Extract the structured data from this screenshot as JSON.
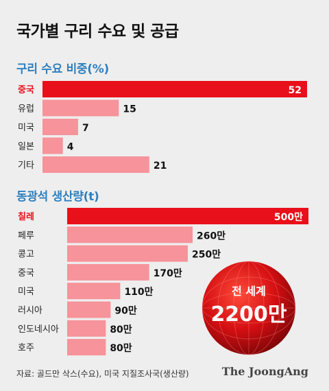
{
  "title": "국가별 구리 수요 및 공급",
  "source": "자료: 골드만 삭스(수요), 미국 지질조사국(생산량)",
  "logo": "The JoongAng",
  "colors": {
    "highlight": "#e8101a",
    "bar": "#f7939a",
    "section_title": "#2c7fbf",
    "background": "#eeeeee"
  },
  "chart_data": [
    {
      "type": "bar",
      "orientation": "horizontal",
      "title": "구리 수요 비중(%)",
      "categories": [
        "중국",
        "유럽",
        "미국",
        "일본",
        "기타"
      ],
      "values": [
        52,
        15,
        7,
        4,
        21
      ],
      "value_labels": [
        "52",
        "15",
        "7",
        "4",
        "21"
      ],
      "highlight_index": 0
    },
    {
      "type": "bar",
      "orientation": "horizontal",
      "title": "동광석 생산량(t)",
      "categories": [
        "칠레",
        "페루",
        "콩고",
        "중국",
        "미국",
        "러시아",
        "인도네시아",
        "호주"
      ],
      "values": [
        5000000,
        2600000,
        2500000,
        1700000,
        1100000,
        900000,
        800000,
        800000
      ],
      "value_labels": [
        "500만",
        "260만",
        "250만",
        "170만",
        "110만",
        "90만",
        "80만",
        "80만"
      ],
      "highlight_index": 0,
      "callout": {
        "label": "전 세계",
        "value": "2200만"
      }
    }
  ]
}
